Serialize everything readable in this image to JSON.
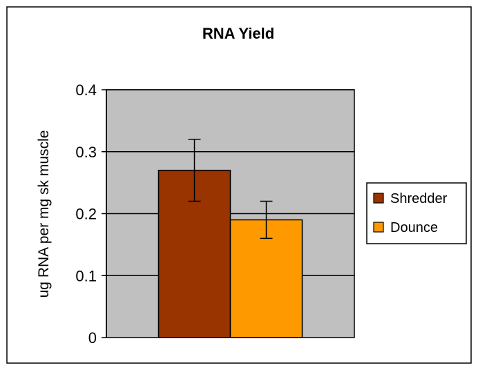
{
  "chart_data": {
    "type": "bar",
    "title": "RNA Yield",
    "xlabel": "",
    "ylabel": "ug RNA per mg sk muscle",
    "ylim": [
      0,
      0.4
    ],
    "yticks": [
      0,
      0.1,
      0.2,
      0.3,
      0.4
    ],
    "ytick_labels": [
      "0",
      "0.1",
      "0.2",
      "0.3",
      "0.4"
    ],
    "grid": true,
    "legend_position": "right",
    "categories": [
      ""
    ],
    "series": [
      {
        "name": "Shredder",
        "values": [
          0.27
        ],
        "error": [
          0.05
        ],
        "color": "#993300"
      },
      {
        "name": "Dounce",
        "values": [
          0.19
        ],
        "error": [
          0.03
        ],
        "color": "#FF9900"
      }
    ],
    "plot_background": "#C0C0C0",
    "gridline_color": "#000000",
    "border_color": "#000000"
  }
}
